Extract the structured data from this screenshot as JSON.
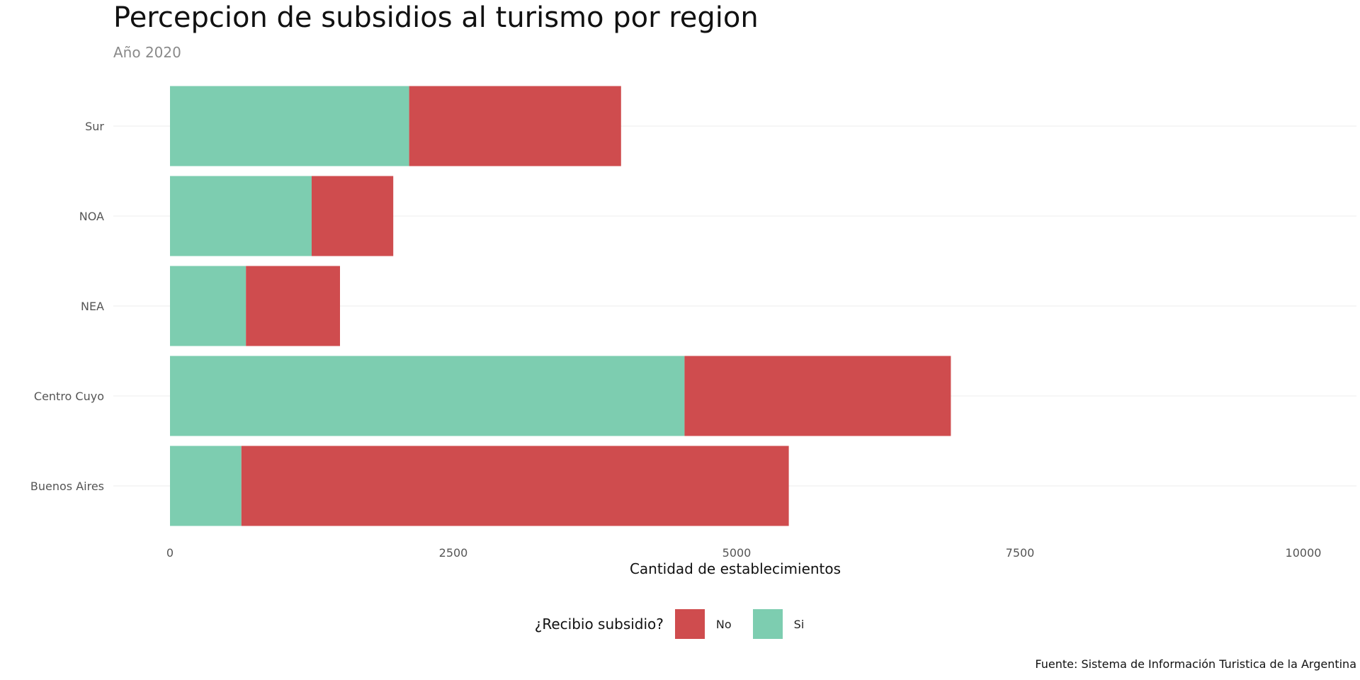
{
  "chart_data": {
    "type": "bar",
    "orientation": "horizontal",
    "stacked": true,
    "title": "Percepcion de subsidios al turismo por region",
    "subtitle": "Año 2020",
    "xlabel": "Cantidad de establecimientos",
    "ylabel": "",
    "xlim": [
      0,
      10000
    ],
    "x_ticks": [
      0,
      2500,
      5000,
      7500,
      10000
    ],
    "categories": [
      "Buenos Aires",
      "Centro Cuyo",
      "NEA",
      "NOA",
      "Sur"
    ],
    "series": [
      {
        "name": "Si",
        "color": "#7dcdb0",
        "values": [
          630,
          4540,
          670,
          1250,
          2110
        ]
      },
      {
        "name": "No",
        "color": "#cf4c4e",
        "values": [
          4830,
          2350,
          830,
          720,
          1870
        ]
      }
    ],
    "grid": "horizontal major lines only",
    "legend": {
      "title": "¿Recibio subsidio?",
      "placement": "bottom",
      "entries": [
        {
          "label": "No",
          "color": "#cf4c4e"
        },
        {
          "label": "Si",
          "color": "#7dcdb0"
        }
      ]
    },
    "caption": "Fuente: Sistema de Información Turistica de la Argentina"
  }
}
